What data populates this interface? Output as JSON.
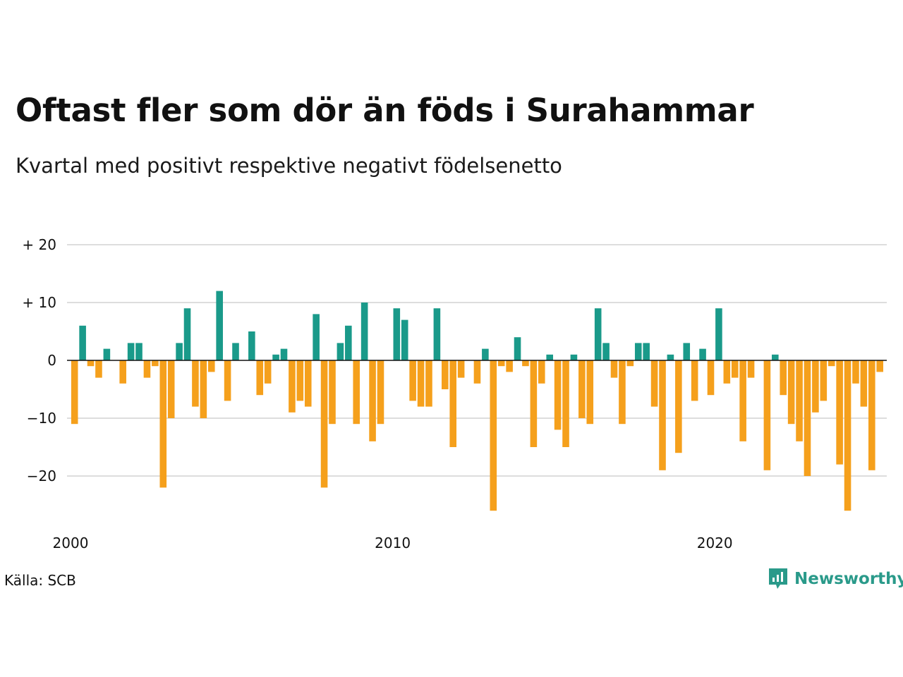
{
  "title": "Oftast fler som dör än föds i Surahammar",
  "subtitle": "Kvartal med positivt respektive negativt födelsenetto",
  "source": "Källa: SCB",
  "brand": {
    "name": "Newsworthy",
    "icon": "newsworthy-logo-icon"
  },
  "colors": {
    "positive": "#1a9a8a",
    "negative": "#f5a01c",
    "grid": "#dddddd",
    "zero_line": "#111111"
  },
  "chart_data": {
    "type": "bar",
    "title": "Oftast fler som dör än föds i Surahammar",
    "subtitle": "Kvartal med positivt respektive negativt födelsenetto",
    "x_start": 2000,
    "x_end": 2025.25,
    "quarters_per_year": 4,
    "ylim": [
      -27,
      21
    ],
    "y_ticks": [
      {
        "value": 20,
        "label": "+ 20"
      },
      {
        "value": 10,
        "label": "+ 10"
      },
      {
        "value": 0,
        "label": "0"
      },
      {
        "value": -10,
        "label": "−10"
      },
      {
        "value": -20,
        "label": "−20"
      }
    ],
    "x_ticks": [
      {
        "value": 2000,
        "label": "2000"
      },
      {
        "value": 2010,
        "label": "2010"
      },
      {
        "value": 2020,
        "label": "2020"
      }
    ],
    "grid": true,
    "values": [
      -11,
      6,
      -1,
      -3,
      2,
      0,
      -4,
      3,
      3,
      -3,
      -1,
      -22,
      -10,
      3,
      9,
      -8,
      -10,
      -2,
      12,
      -7,
      3,
      0,
      5,
      -6,
      -4,
      1,
      2,
      -9,
      -7,
      -8,
      8,
      -22,
      -11,
      3,
      6,
      -11,
      10,
      -14,
      -11,
      0,
      9,
      7,
      -7,
      -8,
      -8,
      9,
      -5,
      -15,
      -3,
      0,
      -4,
      2,
      -26,
      -1,
      -2,
      4,
      -1,
      -15,
      -4,
      1,
      -12,
      -15,
      1,
      -10,
      -11,
      9,
      3,
      -3,
      -11,
      -1,
      3,
      3,
      -8,
      -19,
      1,
      -16,
      3,
      -7,
      2,
      -6,
      9,
      -4,
      -3,
      -14,
      -3,
      0,
      -19,
      1,
      -6,
      -11,
      -14,
      -20,
      -9,
      -7,
      -1,
      -18,
      -26,
      -4,
      -8,
      -19,
      -2
    ]
  }
}
